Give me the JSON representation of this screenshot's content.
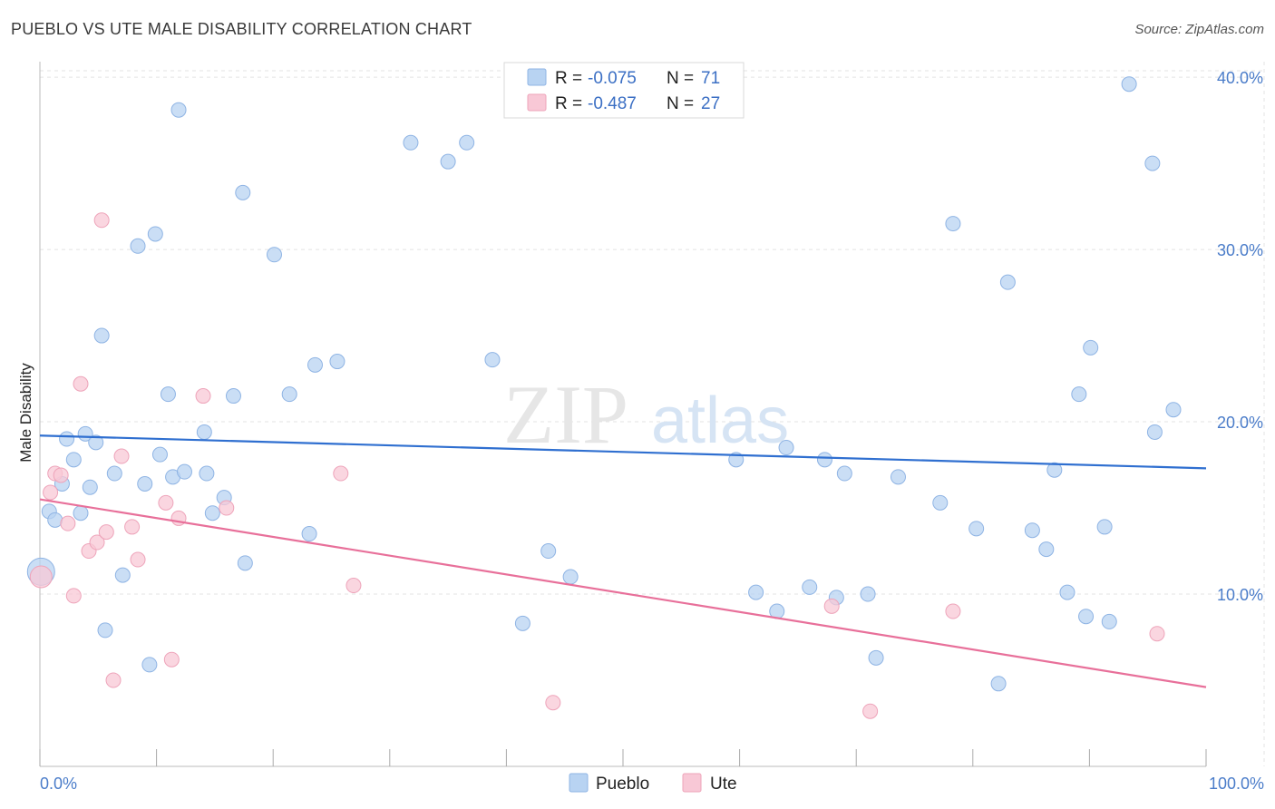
{
  "title": "PUEBLO VS UTE MALE DISABILITY CORRELATION CHART",
  "source": "Source: ZipAtlas.com",
  "watermark": {
    "zip": "ZIP",
    "atlas": "atlas"
  },
  "colors": {
    "pueblo_fill": "#b8d3f2",
    "pueblo_stroke": "#8fb4e4",
    "pueblo_line": "#2f6fd0",
    "ute_fill": "#f8c8d6",
    "ute_stroke": "#eea4ba",
    "ute_line": "#e8709a",
    "tick_text": "#4a7cc9",
    "grid": "#e3e3e3"
  },
  "legend": {
    "items": [
      {
        "r_label": "R =",
        "r_value": "-0.075",
        "n_label": "N =",
        "n_value": "71",
        "series": "pueblo"
      },
      {
        "r_label": "R =",
        "r_value": "-0.487",
        "n_label": "N =",
        "n_value": "27",
        "series": "ute"
      }
    ]
  },
  "chart_data": {
    "type": "scatter",
    "xlabel": "",
    "ylabel": "Male Disability",
    "xlim": [
      0,
      100
    ],
    "ylim": [
      0,
      40.9
    ],
    "x_tick_labels": [
      "0.0%",
      "100.0%"
    ],
    "y_ticks": [
      10,
      20,
      30,
      40
    ],
    "y_tick_labels": [
      "10.0%",
      "20.0%",
      "30.0%",
      "40.0%"
    ],
    "grid": true,
    "legend_position": "top-center",
    "series": [
      {
        "name": "Pueblo",
        "key": "pueblo",
        "R": -0.075,
        "N": 71,
        "trend": {
          "x0": 0,
          "y0": 19.2,
          "x1": 100,
          "y1": 17.3
        },
        "points": [
          [
            0.1,
            11.3
          ],
          [
            0.8,
            14.8
          ],
          [
            1.3,
            14.3
          ],
          [
            1.9,
            16.4
          ],
          [
            2.3,
            19.0
          ],
          [
            2.9,
            17.8
          ],
          [
            3.5,
            14.7
          ],
          [
            3.9,
            19.3
          ],
          [
            4.3,
            16.2
          ],
          [
            4.8,
            18.8
          ],
          [
            5.3,
            25.0
          ],
          [
            5.6,
            7.9
          ],
          [
            6.4,
            17.0
          ],
          [
            7.1,
            11.1
          ],
          [
            8.4,
            30.2
          ],
          [
            9.0,
            16.4
          ],
          [
            9.4,
            5.9
          ],
          [
            9.9,
            30.9
          ],
          [
            10.3,
            18.1
          ],
          [
            11.0,
            21.6
          ],
          [
            11.4,
            16.8
          ],
          [
            11.9,
            38.1
          ],
          [
            12.4,
            17.1
          ],
          [
            14.1,
            19.4
          ],
          [
            14.3,
            17.0
          ],
          [
            14.8,
            14.7
          ],
          [
            15.8,
            15.6
          ],
          [
            16.6,
            21.5
          ],
          [
            17.4,
            33.3
          ],
          [
            17.6,
            11.8
          ],
          [
            20.1,
            29.7
          ],
          [
            21.4,
            21.6
          ],
          [
            23.1,
            13.5
          ],
          [
            23.6,
            23.3
          ],
          [
            25.5,
            23.5
          ],
          [
            31.8,
            36.2
          ],
          [
            35.0,
            35.1
          ],
          [
            36.6,
            36.2
          ],
          [
            38.8,
            23.6
          ],
          [
            41.4,
            8.3
          ],
          [
            43.6,
            12.5
          ],
          [
            45.5,
            11.0
          ],
          [
            59.7,
            17.8
          ],
          [
            61.4,
            10.1
          ],
          [
            63.2,
            9.0
          ],
          [
            64.0,
            18.5
          ],
          [
            66.0,
            10.4
          ],
          [
            67.3,
            17.8
          ],
          [
            68.3,
            9.8
          ],
          [
            69.0,
            17.0
          ],
          [
            71.0,
            10.0
          ],
          [
            71.7,
            6.3
          ],
          [
            73.6,
            16.8
          ],
          [
            77.2,
            15.3
          ],
          [
            78.3,
            31.5
          ],
          [
            80.3,
            13.8
          ],
          [
            82.2,
            4.8
          ],
          [
            83.0,
            28.1
          ],
          [
            85.1,
            13.7
          ],
          [
            86.3,
            12.6
          ],
          [
            87.0,
            17.2
          ],
          [
            88.1,
            10.1
          ],
          [
            89.1,
            21.6
          ],
          [
            89.7,
            8.7
          ],
          [
            90.1,
            24.3
          ],
          [
            91.3,
            13.9
          ],
          [
            91.7,
            8.4
          ],
          [
            93.4,
            39.6
          ],
          [
            95.4,
            35.0
          ],
          [
            95.6,
            19.4
          ],
          [
            97.2,
            20.7
          ]
        ]
      },
      {
        "name": "Ute",
        "key": "ute",
        "R": -0.487,
        "N": 27,
        "trend": {
          "x0": 0,
          "y0": 15.5,
          "x1": 100,
          "y1": 4.6
        },
        "points": [
          [
            0.1,
            11.0
          ],
          [
            0.9,
            15.9
          ],
          [
            1.3,
            17.0
          ],
          [
            1.8,
            16.9
          ],
          [
            2.4,
            14.1
          ],
          [
            2.9,
            9.9
          ],
          [
            3.5,
            22.2
          ],
          [
            4.2,
            12.5
          ],
          [
            4.9,
            13.0
          ],
          [
            5.3,
            31.7
          ],
          [
            5.7,
            13.6
          ],
          [
            6.3,
            5.0
          ],
          [
            7.0,
            18.0
          ],
          [
            7.9,
            13.9
          ],
          [
            8.4,
            12.0
          ],
          [
            10.8,
            15.3
          ],
          [
            11.3,
            6.2
          ],
          [
            11.9,
            14.4
          ],
          [
            14.0,
            21.5
          ],
          [
            16.0,
            15.0
          ],
          [
            25.8,
            17.0
          ],
          [
            26.9,
            10.5
          ],
          [
            44.0,
            3.7
          ],
          [
            67.9,
            9.3
          ],
          [
            71.2,
            3.2
          ],
          [
            78.3,
            9.0
          ],
          [
            95.8,
            7.7
          ]
        ]
      }
    ]
  }
}
